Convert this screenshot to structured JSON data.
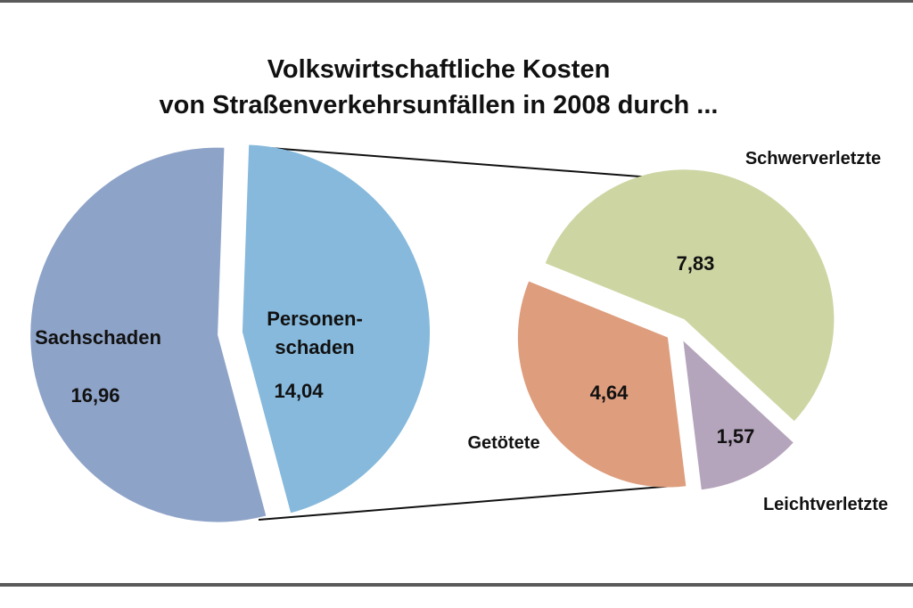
{
  "title_line1": "Volkswirtschaftliche Kosten",
  "title_line2": "von Straßenverkehrsunfällen in 2008 durch ...",
  "chart_data": [
    {
      "type": "pie",
      "title": "Volkswirtschaftliche Kosten von Straßenverkehrsunfällen in 2008 durch ...",
      "slices": [
        {
          "label": "Sachschaden",
          "value": 16.96,
          "value_label": "16,96",
          "color": "#8ea3c8"
        },
        {
          "label": "Personen-schaden",
          "label_lines": [
            "Personen-",
            "schaden"
          ],
          "value": 14.04,
          "value_label": "14,04",
          "color": "#86b9dc",
          "exploded_into_next_chart": true
        }
      ]
    },
    {
      "type": "pie",
      "title": "",
      "parent_slice": "Personen-schaden",
      "slices": [
        {
          "label": "Schwerverletzte",
          "value": 7.83,
          "value_label": "7,83",
          "color": "#cdd6a3"
        },
        {
          "label": "Leichtverletzte",
          "value": 1.57,
          "value_label": "1,57",
          "color": "#b4a4bc"
        },
        {
          "label": "Getötete",
          "value": 4.64,
          "value_label": "4,64",
          "color": "#de9d7d"
        }
      ]
    }
  ]
}
